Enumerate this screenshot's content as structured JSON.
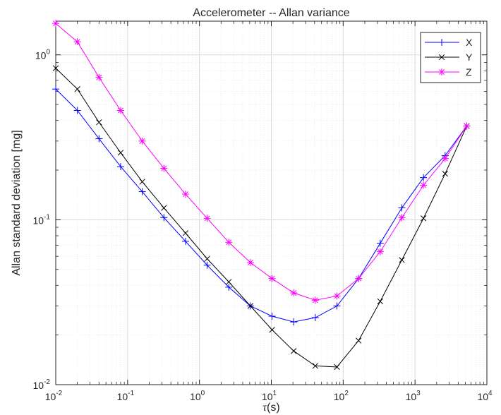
{
  "chart_data": {
    "type": "line",
    "title": "Accelerometer -- Allan variance",
    "xlabel_symbol": "τ",
    "xlabel_unit": "(s)",
    "ylabel": "Allan standard deviation [mg]",
    "xscale": "log",
    "yscale": "log",
    "xlim": [
      0.01,
      10000
    ],
    "ylim": [
      0.01,
      1.6
    ],
    "grid": true,
    "minor_grid": true,
    "legend_position": "top-right",
    "x_tick_labels": [
      {
        "base": "10",
        "exp": "-2"
      },
      {
        "base": "10",
        "exp": "-1"
      },
      {
        "base": "10",
        "exp": "0"
      },
      {
        "base": "10",
        "exp": "1"
      },
      {
        "base": "10",
        "exp": "2"
      },
      {
        "base": "10",
        "exp": "3"
      },
      {
        "base": "10",
        "exp": "4"
      }
    ],
    "y_tick_labels": [
      {
        "base": "10",
        "exp": "-2"
      },
      {
        "base": "10",
        "exp": "-1"
      },
      {
        "base": "10",
        "exp": "0"
      }
    ],
    "x": [
      0.01,
      0.02,
      0.04,
      0.08,
      0.16,
      0.32,
      0.64,
      1.28,
      2.56,
      5.12,
      10.24,
      20.48,
      40.96,
      81.92,
      163.84,
      327.68,
      655.36,
      1310.72,
      2621.44,
      5242.88
    ],
    "series": [
      {
        "name": "X",
        "color": "#0000ff",
        "marker": "plus",
        "values": [
          0.62,
          0.46,
          0.31,
          0.21,
          0.148,
          0.103,
          0.074,
          0.053,
          0.039,
          0.03,
          0.026,
          0.024,
          0.0255,
          0.03,
          0.044,
          0.072,
          0.118,
          0.18,
          0.245,
          0.37
        ]
      },
      {
        "name": "Y",
        "color": "#000000",
        "marker": "x",
        "values": [
          0.83,
          0.62,
          0.39,
          0.255,
          0.17,
          0.118,
          0.083,
          0.058,
          0.042,
          0.03,
          0.0215,
          0.016,
          0.013,
          0.0128,
          0.0185,
          0.032,
          0.057,
          0.102,
          0.19,
          0.37
        ]
      },
      {
        "name": "Z",
        "color": "#ff00ff",
        "marker": "star",
        "values": [
          1.55,
          1.2,
          0.73,
          0.46,
          0.3,
          0.205,
          0.143,
          0.102,
          0.073,
          0.055,
          0.044,
          0.036,
          0.0325,
          0.0345,
          0.044,
          0.064,
          0.103,
          0.162,
          0.235,
          0.37
        ]
      }
    ]
  }
}
